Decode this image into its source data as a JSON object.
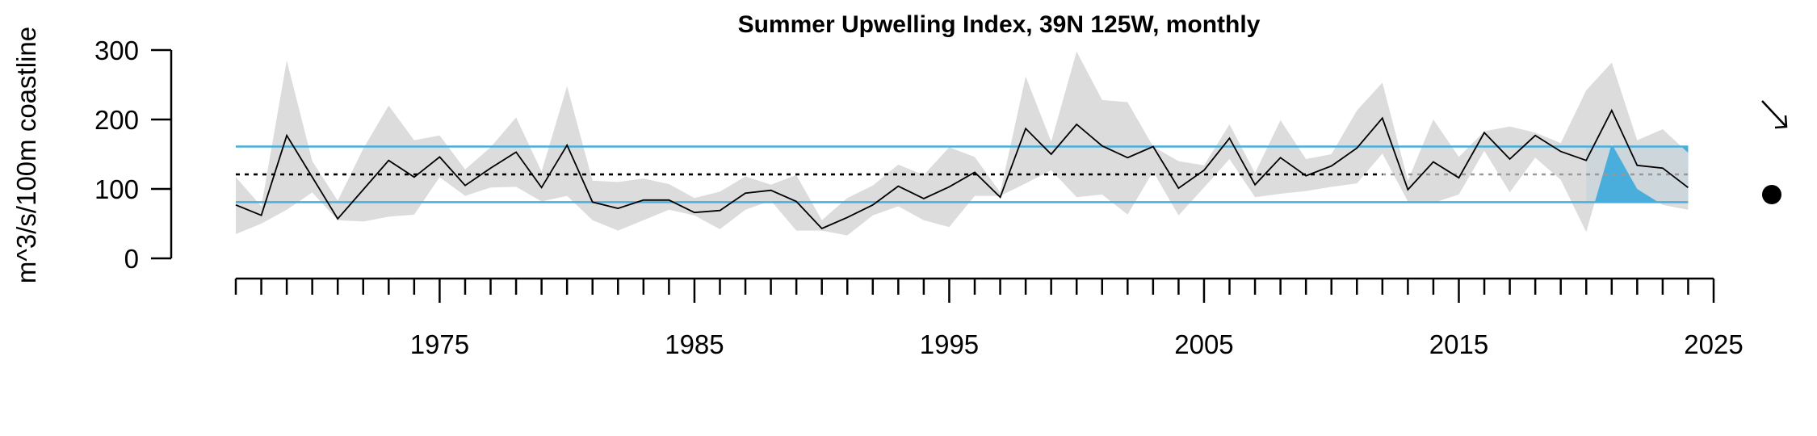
{
  "chart_data": {
    "type": "line",
    "title": "Summer Upwelling Index, 39N 125W, monthly",
    "xlabel": "",
    "ylabel": "m^3/s/100m coastline",
    "xlim": [
      1967,
      2025
    ],
    "ylim": [
      0,
      300
    ],
    "x_ticks": [
      1975,
      1985,
      1995,
      2005,
      2015,
      2025
    ],
    "y_ticks": [
      0,
      100,
      200,
      300
    ],
    "grid": false,
    "x": [
      1967,
      1968,
      1969,
      1970,
      1971,
      1972,
      1973,
      1974,
      1975,
      1976,
      1977,
      1978,
      1979,
      1980,
      1981,
      1982,
      1983,
      1984,
      1985,
      1986,
      1987,
      1988,
      1989,
      1990,
      1991,
      1992,
      1993,
      1994,
      1995,
      1996,
      1997,
      1998,
      1999,
      2000,
      2001,
      2002,
      2003,
      2004,
      2005,
      2006,
      2007,
      2008,
      2009,
      2010,
      2011,
      2012,
      2013,
      2014,
      2015,
      2016,
      2017,
      2018,
      2019,
      2020,
      2021,
      2022,
      2023,
      2024
    ],
    "series": [
      {
        "values": [
          77,
          62,
          177,
          117,
          57,
          99,
          141,
          117,
          146,
          105,
          130,
          153,
          102,
          163,
          81,
          72,
          84,
          84,
          66,
          69,
          94,
          98,
          82,
          43,
          59,
          77,
          104,
          86,
          103,
          124,
          88,
          187,
          150,
          193,
          162,
          145,
          161,
          101,
          127,
          173,
          106,
          145,
          119,
          133,
          159,
          202,
          99,
          139,
          116,
          181,
          143,
          177,
          154,
          141,
          213,
          134,
          130,
          102
        ],
        "lower": [
          35,
          50,
          70,
          95,
          55,
          53,
          60,
          63,
          117,
          90,
          102,
          103,
          82,
          90,
          55,
          40,
          55,
          70,
          62,
          42,
          70,
          83,
          40,
          40,
          33,
          62,
          75,
          55,
          45,
          90,
          90,
          108,
          127,
          88,
          92,
          63,
          125,
          62,
          102,
          143,
          88,
          93,
          97,
          103,
          108,
          151,
          82,
          80,
          92,
          155,
          95,
          145,
          113,
          38,
          165,
          100,
          77,
          70
        ],
        "upper": [
          117,
          75,
          285,
          140,
          83,
          158,
          220,
          170,
          177,
          128,
          160,
          203,
          125,
          248,
          112,
          110,
          115,
          107,
          87,
          96,
          118,
          106,
          120,
          55,
          87,
          105,
          135,
          120,
          160,
          146,
          95,
          262,
          168,
          298,
          228,
          225,
          161,
          140,
          134,
          193,
          123,
          199,
          143,
          150,
          213,
          253,
          112,
          200,
          146,
          183,
          190,
          181,
          166,
          242,
          282,
          170,
          186,
          152
        ]
      }
    ],
    "reference_lines": {
      "mean": 121,
      "mean_plus_sd": 161,
      "mean_minus_sd": 81
    },
    "recent_period": [
      2020,
      2024
    ],
    "colors": {
      "line": "#000000",
      "band": "#d9d9d9",
      "sd_line": "#49aedc",
      "recent_fill": "#49aedc",
      "mean_line": "#000000",
      "mean_line_faded": "#999999",
      "sd_line_faded": "#a7d3e6"
    },
    "trend_indicator": "arrow-down-right-icon",
    "mean_indicator": "filled-circle-icon"
  }
}
